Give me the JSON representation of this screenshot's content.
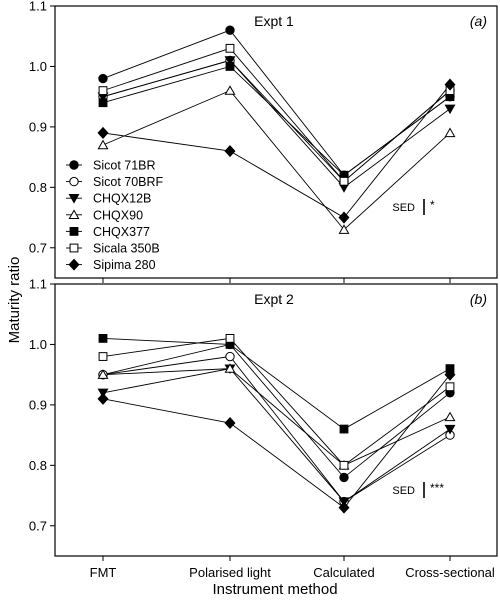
{
  "chart_data": {
    "type": "line",
    "ylabel": "Maturity ratio",
    "xlabel": "Instrument method",
    "categories": [
      "FMT",
      "Polarised light",
      "Calculated",
      "Cross-sectional"
    ],
    "ylim": [
      0.65,
      1.1
    ],
    "yticks": [
      0.7,
      0.8,
      0.9,
      1.0,
      1.1
    ],
    "ytick_labels": [
      "0.7",
      "0.8",
      "0.9",
      "1.0",
      "1.1"
    ],
    "legend_placement": "left (panel a)",
    "series_styles": [
      {
        "name": "Sicot 71BR",
        "marker": "circle",
        "fill": "filled"
      },
      {
        "name": "Sicot 70BRF",
        "marker": "circle",
        "fill": "open"
      },
      {
        "name": "CHQX12B",
        "marker": "triangle-down",
        "fill": "filled"
      },
      {
        "name": "CHQX90",
        "marker": "triangle-up",
        "fill": "open"
      },
      {
        "name": "CHQX377",
        "marker": "square",
        "fill": "filled"
      },
      {
        "name": "Sicala 350B",
        "marker": "square",
        "fill": "open"
      },
      {
        "name": "Sipima 280",
        "marker": "diamond",
        "fill": "filled"
      }
    ],
    "panels": [
      {
        "title": "Expt 1",
        "tag": "(a)",
        "sed_label": "SED",
        "sed_significance": "*",
        "series": [
          {
            "name": "Sicot 71BR",
            "values": [
              0.98,
              1.06,
              0.82,
              0.95
            ]
          },
          {
            "name": "Sicot 70BRF",
            "values": [
              0.95,
              1.01,
              0.81,
              0.96
            ]
          },
          {
            "name": "CHQX12B",
            "values": [
              0.95,
              1.01,
              0.8,
              0.93
            ]
          },
          {
            "name": "CHQX90",
            "values": [
              0.87,
              0.96,
              0.73,
              0.89
            ]
          },
          {
            "name": "CHQX377",
            "values": [
              0.94,
              1.0,
              0.82,
              0.95
            ]
          },
          {
            "name": "Sicala 350B",
            "values": [
              0.96,
              1.03,
              0.81,
              0.96
            ]
          },
          {
            "name": "Sipima 280",
            "values": [
              0.89,
              0.86,
              0.75,
              0.97
            ]
          }
        ]
      },
      {
        "title": "Expt 2",
        "tag": "(b)",
        "sed_label": "SED",
        "sed_significance": "***",
        "series": [
          {
            "name": "Sicot 71BR",
            "values": [
              0.95,
              1.0,
              0.78,
              0.92
            ]
          },
          {
            "name": "Sicot 70BRF",
            "values": [
              0.95,
              0.98,
              0.74,
              0.85
            ]
          },
          {
            "name": "CHQX12B",
            "values": [
              0.92,
              0.96,
              0.74,
              0.86
            ]
          },
          {
            "name": "CHQX90",
            "values": [
              0.95,
              0.96,
              0.8,
              0.88
            ]
          },
          {
            "name": "CHQX377",
            "values": [
              1.01,
              1.0,
              0.86,
              0.96
            ]
          },
          {
            "name": "Sicala 350B",
            "values": [
              0.98,
              1.01,
              0.8,
              0.93
            ]
          },
          {
            "name": "Sipima 280",
            "values": [
              0.91,
              0.87,
              0.73,
              0.95
            ]
          }
        ]
      }
    ]
  }
}
